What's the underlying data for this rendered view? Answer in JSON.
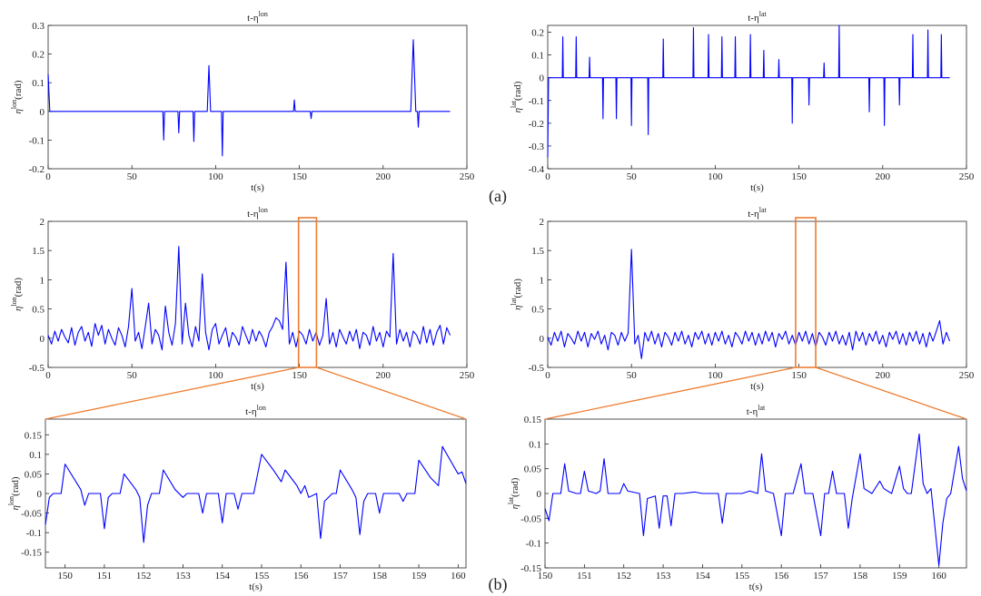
{
  "figure_labels": [
    "(a)",
    "(b)"
  ],
  "chart_data": [
    {
      "type": "line",
      "title": "t-η",
      "title_sup": "lon",
      "xlabel": "t(s)",
      "ylabel": "η",
      "ylabel_sup": "lon",
      "ylabel_unit": "(rad)",
      "xlim": [
        0,
        250
      ],
      "xticks": [
        0,
        50,
        100,
        150,
        200,
        250
      ],
      "ylim": [
        -0.2,
        0.3
      ],
      "yticks": [
        -0.2,
        -0.1,
        0,
        0.1,
        0.2,
        0.3
      ],
      "x": [
        0,
        1,
        68.5,
        69,
        69.5,
        77.5,
        78,
        78.5,
        86.5,
        87,
        87.5,
        95,
        96,
        97,
        103.5,
        104,
        104.5,
        146.5,
        147,
        147.5,
        156.5,
        157,
        157.5,
        216.5,
        218,
        219.5,
        220.5,
        221,
        221.5,
        240
      ],
      "series": [
        {
          "color": "#0000ff",
          "values": [
            0.13,
            0,
            0,
            -0.1,
            0,
            0,
            -0.075,
            0,
            0,
            -0.105,
            0,
            0,
            0.16,
            0,
            0,
            -0.155,
            0,
            0,
            0.04,
            0,
            0,
            -0.025,
            0,
            0,
            0.25,
            0,
            0,
            -0.055,
            0,
            0
          ]
        }
      ]
    },
    {
      "type": "line",
      "title": "t-η",
      "title_sup": "lat",
      "xlabel": "t(s)",
      "ylabel": "η",
      "ylabel_sup": "lat",
      "ylabel_unit": "(rad)",
      "xlim": [
        0,
        250
      ],
      "xticks": [
        0,
        50,
        100,
        150,
        200,
        250
      ],
      "ylim": [
        -0.4,
        0.23
      ],
      "yticks": [
        -0.4,
        -0.3,
        -0.2,
        -0.1,
        0,
        0.1,
        0.2
      ],
      "x": [
        0,
        0.5,
        8.7,
        9,
        9.3,
        16.7,
        17,
        17.3,
        24.7,
        25,
        25.3,
        32.7,
        33,
        33.3,
        40.7,
        41,
        41.3,
        49.7,
        50,
        50.3,
        59.7,
        60,
        60.3,
        68.7,
        69,
        69.3,
        86.7,
        87,
        87.3,
        95.7,
        96,
        96.3,
        103.7,
        104,
        104.3,
        111.7,
        112,
        112.3,
        120.7,
        121,
        121.3,
        128.7,
        129,
        129.3,
        137.7,
        138,
        138.3,
        145.7,
        146,
        146.3,
        155.7,
        156,
        156.3,
        164.7,
        165,
        165.3,
        173.7,
        174,
        174.3,
        191.7,
        192,
        192.3,
        200.7,
        201,
        201.3,
        209.7,
        210,
        210.3,
        217.7,
        218,
        218.3,
        226.7,
        227,
        227.3,
        234.7,
        235,
        235.3,
        240
      ],
      "series": [
        {
          "color": "#0000ff",
          "values": [
            -0.35,
            0,
            0,
            0.18,
            0,
            0,
            0.18,
            0,
            0,
            0.09,
            0,
            0,
            -0.18,
            0,
            0,
            -0.18,
            0,
            0,
            -0.21,
            0,
            0,
            -0.25,
            0,
            0,
            0.17,
            0,
            0,
            0.22,
            0,
            0,
            0.19,
            0,
            0,
            0.18,
            0,
            0,
            0.18,
            0,
            0,
            0.19,
            0,
            0,
            0.12,
            0,
            0,
            0.08,
            0,
            0,
            -0.2,
            0,
            0,
            -0.12,
            0,
            0,
            0.065,
            0,
            0,
            0.23,
            0,
            0,
            -0.15,
            0,
            0,
            -0.21,
            0,
            0,
            -0.12,
            0,
            0,
            0.19,
            0,
            0,
            0.21,
            0,
            0,
            0.19,
            0,
            0
          ]
        }
      ]
    },
    {
      "type": "line",
      "title": "t-η",
      "title_sup": "lon",
      "xlabel": "t(s)",
      "ylabel": "η",
      "ylabel_sup": "lon",
      "ylabel_unit": "(rad)",
      "xlim": [
        0,
        250
      ],
      "xticks": [
        0,
        50,
        100,
        150,
        200,
        250
      ],
      "ylim": [
        -0.5,
        2
      ],
      "yticks": [
        -0.5,
        0,
        0.5,
        1,
        1.5,
        2
      ],
      "zoom": [
        149.5,
        160.2
      ],
      "zoom_color": "#ed7d31",
      "x": [
        0,
        2,
        4,
        6,
        8,
        10,
        12,
        14,
        16,
        18,
        20,
        22,
        24,
        26,
        28,
        30,
        32,
        34,
        36,
        38,
        40,
        42,
        44,
        46,
        48,
        50,
        52,
        54,
        56,
        58,
        60,
        62,
        64,
        66,
        68,
        70,
        72,
        74,
        76,
        78,
        80,
        82,
        84,
        86,
        88,
        90,
        92,
        94,
        96,
        98,
        100,
        102,
        104,
        106,
        108,
        110,
        112,
        114,
        116,
        118,
        120,
        122,
        124,
        126,
        128,
        130,
        132,
        134,
        136,
        138,
        140,
        142,
        144,
        146,
        148,
        150,
        152,
        154,
        156,
        158,
        160,
        162,
        164,
        166,
        168,
        170,
        172,
        174,
        176,
        178,
        180,
        182,
        184,
        186,
        188,
        190,
        192,
        194,
        196,
        198,
        200,
        202,
        204,
        206,
        208,
        210,
        212,
        214,
        216,
        218,
        220,
        222,
        224,
        226,
        228,
        230,
        232,
        234,
        236,
        238,
        240
      ],
      "series": [
        {
          "color": "#0000ff",
          "values": [
            0.05,
            -0.1,
            0.12,
            -0.05,
            0.15,
            0.02,
            -0.08,
            0.18,
            -0.12,
            0.1,
            0.2,
            -0.05,
            0.1,
            -0.14,
            0.25,
            0.05,
            0.22,
            -0.1,
            0.15,
            0,
            -0.12,
            0.18,
            0.05,
            -0.15,
            0.2,
            0.85,
            -0.05,
            0.1,
            -0.18,
            0.2,
            0.6,
            -0.1,
            0.15,
            0.05,
            -0.2,
            0.55,
            0.1,
            -0.12,
            0.25,
            1.57,
            -0.1,
            0.6,
            0.05,
            -0.15,
            0.2,
            -0.05,
            1.1,
            0.1,
            -0.2,
            0.15,
            0.25,
            -0.1,
            0.05,
            0.18,
            -0.15,
            0.1,
            0.02,
            -0.12,
            0.2,
            0.05,
            -0.1,
            0.15,
            -0.05,
            0.12,
            0.02,
            -0.15,
            0.1,
            0.2,
            0.35,
            0.3,
            0.15,
            1.3,
            -0.1,
            0.1,
            -0.15,
            0.12,
            0.05,
            -0.1,
            0.15,
            -0.05,
            0.1,
            -0.12,
            0.05,
            0.68,
            -0.1,
            0.1,
            -0.15,
            0.15,
            0.02,
            -0.1,
            0.12,
            -0.05,
            0.15,
            -0.18,
            0.1,
            0.05,
            -0.12,
            0.2,
            -0.05,
            0.1,
            -0.15,
            0.12,
            0.02,
            1.45,
            -0.1,
            0.15,
            -0.05,
            0.1,
            -0.15,
            0.12,
            0.05,
            -0.1,
            0.2,
            -0.08,
            0.15,
            -0.12,
            0.1,
            0.22,
            -0.1,
            0.18,
            0.05
          ]
        }
      ]
    },
    {
      "type": "line",
      "title": "t-η",
      "title_sup": "lat",
      "xlabel": "t(s)",
      "ylabel": "η",
      "ylabel_sup": "lat",
      "ylabel_unit": "(rad)",
      "xlim": [
        0,
        250
      ],
      "xticks": [
        0,
        50,
        100,
        150,
        200,
        250
      ],
      "ylim": [
        -0.5,
        2
      ],
      "yticks": [
        -0.5,
        0,
        0.5,
        1,
        1.5,
        2
      ],
      "zoom": [
        148,
        160
      ],
      "zoom_color": "#ed7d31",
      "x": [
        0,
        2,
        4,
        6,
        8,
        10,
        12,
        14,
        16,
        18,
        20,
        22,
        24,
        26,
        28,
        30,
        32,
        34,
        36,
        38,
        40,
        42,
        44,
        46,
        48,
        50,
        52,
        54,
        56,
        58,
        60,
        62,
        64,
        66,
        68,
        70,
        72,
        74,
        76,
        78,
        80,
        82,
        84,
        86,
        88,
        90,
        92,
        94,
        96,
        98,
        100,
        102,
        104,
        106,
        108,
        110,
        112,
        114,
        116,
        118,
        120,
        122,
        124,
        126,
        128,
        130,
        132,
        134,
        136,
        138,
        140,
        142,
        144,
        146,
        148,
        150,
        152,
        154,
        156,
        158,
        160,
        162,
        164,
        166,
        168,
        170,
        172,
        174,
        176,
        178,
        180,
        182,
        184,
        186,
        188,
        190,
        192,
        194,
        196,
        198,
        200,
        202,
        204,
        206,
        208,
        210,
        212,
        214,
        216,
        218,
        220,
        222,
        224,
        226,
        228,
        230,
        232,
        234,
        236,
        238,
        240
      ],
      "series": [
        {
          "color": "#0000ff",
          "values": [
            0.02,
            -0.12,
            0.1,
            -0.05,
            0.12,
            -0.15,
            0.08,
            0,
            -0.1,
            0.12,
            -0.05,
            0.1,
            -0.15,
            0.08,
            -0.02,
            0.12,
            -0.1,
            0.05,
            -0.2,
            0.1,
            0.05,
            -0.12,
            0.1,
            -0.05,
            0.08,
            1.52,
            -0.1,
            0.05,
            -0.35,
            0.1,
            -0.05,
            0.12,
            -0.1,
            0.08,
            -0.15,
            0.1,
            0.02,
            -0.12,
            0.1,
            -0.05,
            0.12,
            -0.1,
            0.05,
            -0.15,
            0.1,
            -0.02,
            0.12,
            -0.1,
            0.08,
            -0.12,
            0.1,
            -0.05,
            0.12,
            -0.1,
            0.05,
            -0.15,
            0.1,
            0.02,
            -0.1,
            0.12,
            -0.05,
            0.1,
            -0.12,
            0.08,
            -0.1,
            0.12,
            -0.05,
            0.1,
            -0.15,
            0.08,
            -0.02,
            0.12,
            -0.1,
            0.05,
            -0.12,
            0.1,
            -0.05,
            0.12,
            -0.1,
            0.08,
            -0.15,
            0.1,
            0.02,
            -0.12,
            0.1,
            -0.05,
            0.12,
            -0.1,
            0.05,
            -0.12,
            0.1,
            -0.2,
            0.12,
            -0.05,
            0.1,
            -0.12,
            0.08,
            -0.05,
            0.12,
            -0.1,
            0.05,
            -0.15,
            0.1,
            -0.02,
            0.12,
            -0.1,
            0.08,
            -0.12,
            0.1,
            -0.05,
            0.12,
            -0.1,
            0.08,
            -0.15,
            0.1,
            -0.05,
            0.12,
            0.3,
            -0.1,
            0.1,
            -0.05
          ]
        }
      ]
    },
    {
      "type": "line",
      "title": "t-η",
      "title_sup": "lon",
      "xlabel": "t(s)",
      "ylabel": "η",
      "ylabel_sup": "lon",
      "ylabel_unit": "(rad)",
      "xlim": [
        149.5,
        160.2
      ],
      "xticks": [
        150,
        151,
        152,
        153,
        154,
        155,
        156,
        157,
        158,
        159,
        160
      ],
      "ylim": [
        -0.19,
        0.19
      ],
      "yticks": [
        -0.15,
        -0.1,
        -0.05,
        0,
        0.05,
        0.1,
        0.15
      ],
      "x": [
        149.5,
        149.6,
        149.7,
        149.9,
        150,
        150.4,
        150.5,
        150.6,
        150.8,
        150.9,
        151,
        151.1,
        151.2,
        151.4,
        151.5,
        151.8,
        151.9,
        152,
        152.1,
        152.2,
        152.4,
        152.5,
        152.8,
        153,
        153.1,
        153.4,
        153.5,
        153.6,
        153.8,
        153.9,
        154,
        154.1,
        154.3,
        154.4,
        154.5,
        154.8,
        155,
        155.3,
        155.5,
        155.6,
        155.9,
        156,
        156.1,
        156.2,
        156.4,
        156.5,
        156.6,
        156.8,
        156.9,
        157,
        157.3,
        157.4,
        157.5,
        157.6,
        157.7,
        157.9,
        158,
        158.1,
        158.2,
        158.5,
        158.6,
        158.7,
        158.9,
        159,
        159.3,
        159.5,
        159.6,
        160,
        160.1,
        160.2
      ],
      "series": [
        {
          "color": "#0000ff",
          "values": [
            -0.08,
            -0.01,
            0,
            0,
            0.075,
            0.01,
            -0.03,
            0,
            0,
            0,
            -0.09,
            -0.01,
            0,
            0,
            0.05,
            0.01,
            -0.01,
            -0.125,
            -0.03,
            0,
            0,
            0.06,
            0.01,
            -0.01,
            0,
            0,
            -0.05,
            0,
            0,
            0,
            -0.075,
            0,
            0,
            -0.04,
            0,
            0,
            0.1,
            0.06,
            0.03,
            0.06,
            0.02,
            0,
            0.02,
            -0.01,
            0,
            -0.115,
            -0.02,
            0,
            0,
            0.06,
            0.01,
            -0.01,
            -0.105,
            -0.02,
            0,
            0,
            -0.05,
            0,
            0,
            0,
            -0.02,
            0,
            0,
            0.085,
            0.04,
            0.02,
            0.12,
            0.05,
            0.055,
            0.025
          ]
        }
      ]
    },
    {
      "type": "line",
      "title": "t-η",
      "title_sup": "lat",
      "xlabel": "t(s)",
      "ylabel": "η",
      "ylabel_sup": "lat",
      "ylabel_unit": "(rad)",
      "xlim": [
        150,
        160.7
      ],
      "xticks": [
        150,
        151,
        152,
        153,
        154,
        155,
        156,
        157,
        158,
        159,
        160
      ],
      "ylim": [
        -0.15,
        0.15
      ],
      "yticks": [
        -0.15,
        -0.1,
        -0.05,
        0,
        0.05,
        0.1,
        0.15
      ],
      "x": [
        150,
        150.1,
        150.2,
        150.4,
        150.5,
        150.6,
        150.8,
        150.9,
        151,
        151.1,
        151.3,
        151.4,
        151.5,
        151.6,
        151.7,
        151.9,
        152,
        152.1,
        152.4,
        152.5,
        152.6,
        152.8,
        152.9,
        153,
        153.1,
        153.2,
        153.3,
        153.5,
        153.8,
        154,
        154.4,
        154.5,
        154.6,
        155,
        155.2,
        155.4,
        155.5,
        155.6,
        155.8,
        156,
        156.1,
        156.3,
        156.5,
        156.6,
        156.8,
        157,
        157.1,
        157.2,
        157.3,
        157.4,
        157.6,
        157.7,
        157.8,
        158,
        158.1,
        158.3,
        158.5,
        158.6,
        158.8,
        159,
        159.1,
        159.2,
        159.3,
        159.5,
        159.6,
        159.7,
        159.8,
        160,
        160.1,
        160.2,
        160.3,
        160.5,
        160.6,
        160.7
      ],
      "series": [
        {
          "color": "#0000ff",
          "values": [
            -0.03,
            -0.055,
            0,
            0,
            0.06,
            0.005,
            0,
            0,
            0.045,
            0.005,
            0,
            0.005,
            0.07,
            0,
            0,
            0,
            0.02,
            0.005,
            0,
            -0.085,
            -0.01,
            -0.005,
            -0.07,
            -0.005,
            -0.005,
            -0.065,
            0,
            0,
            0.003,
            0,
            0,
            -0.06,
            0,
            0,
            0.005,
            0,
            0.08,
            0.005,
            0,
            -0.085,
            0,
            0,
            0.06,
            0,
            0,
            -0.085,
            0,
            0,
            0.045,
            0,
            0,
            -0.07,
            -0.01,
            0.08,
            0.01,
            0,
            0.025,
            0.01,
            0,
            0.055,
            0.01,
            0,
            0,
            0.12,
            0.02,
            0,
            0.01,
            -0.145,
            -0.06,
            -0.01,
            0,
            0.095,
            0.03,
            0.005
          ]
        }
      ]
    }
  ]
}
